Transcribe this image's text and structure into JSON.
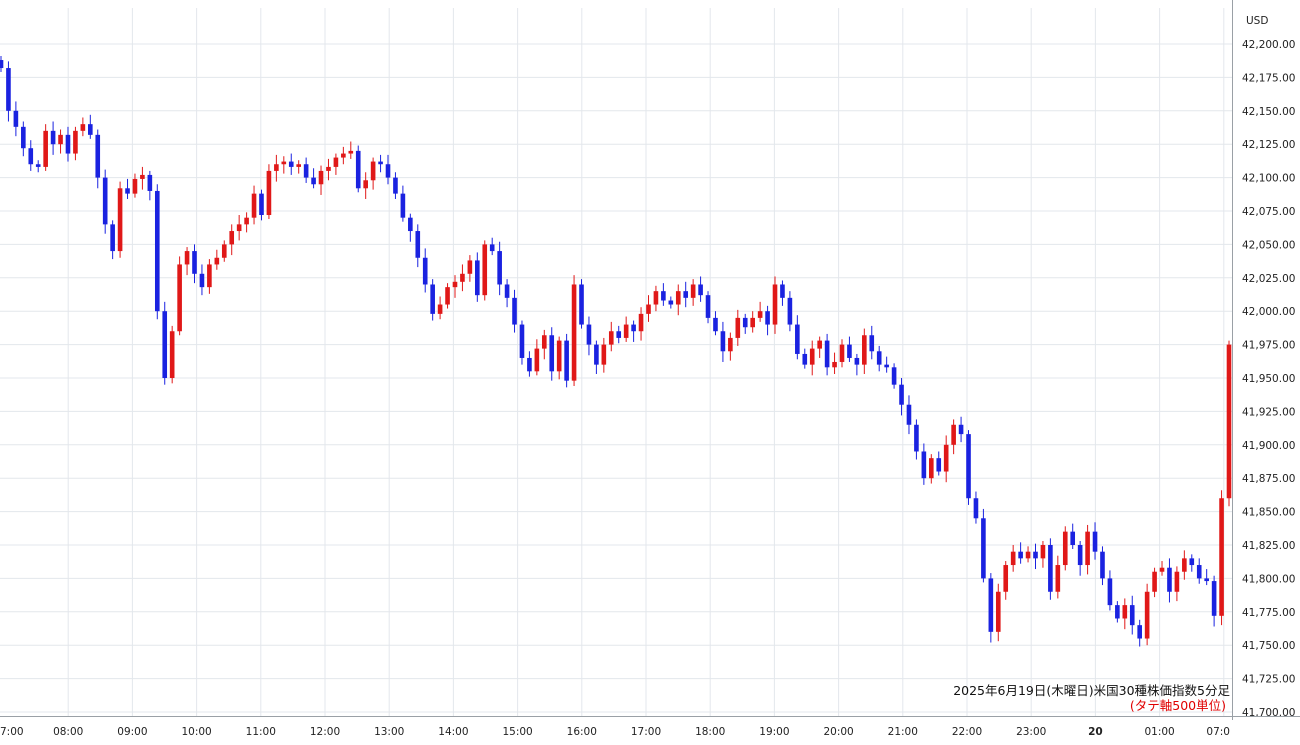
{
  "chart_data": {
    "type": "candlestick",
    "title": "2025年6月19日(木曜日)米国30種株価指数5分足",
    "subtitle": "(タテ軸500単位)",
    "currency": "USD",
    "ylim": [
      41700,
      42210
    ],
    "yticks": [
      "42,200.00",
      "42,175.00",
      "42,150.00",
      "42,125.00",
      "42,100.00",
      "42,075.00",
      "42,050.00",
      "42,025.00",
      "42,000.00",
      "41,975.00",
      "41,950.00",
      "41,925.00",
      "41,900.00",
      "41,875.00",
      "41,850.00",
      "41,825.00",
      "41,800.00",
      "41,775.00",
      "41,750.00",
      "41,725.00",
      "41,700.00"
    ],
    "xticks": [
      "7:00",
      "08:00",
      "09:00",
      "10:00",
      "11:00",
      "12:00",
      "13:00",
      "14:00",
      "15:00",
      "16:00",
      "17:00",
      "18:00",
      "19:00",
      "20:00",
      "21:00",
      "22:00",
      "23:00",
      "20",
      "01:00",
      "07:0"
    ],
    "grid": true,
    "colors": {
      "up": "#e01818",
      "down": "#1a22e0"
    },
    "series": [
      {
        "close_path": [
          42182,
          42150,
          42138,
          42122,
          42110,
          42108,
          42135,
          42125,
          42132,
          42118,
          42135,
          42140,
          42132,
          42100,
          42065,
          42045,
          42092,
          42088,
          42099,
          42102,
          42090,
          42000,
          41950,
          41985,
          42035,
          42045,
          42028,
          42018,
          42035,
          42040,
          42050,
          42060,
          42065,
          42070,
          42088,
          42072,
          42105,
          42110,
          42112,
          42108,
          42110,
          42100,
          42095,
          42105,
          42108,
          42115,
          42118,
          42120,
          42092,
          42098,
          42112,
          42110,
          42100,
          42088,
          42070,
          42060,
          42040,
          42020,
          41998,
          42005,
          42018,
          42022,
          42028,
          42038,
          42012,
          42050,
          42045,
          42020,
          42010,
          41990,
          41965,
          41955,
          41972,
          41982,
          41955,
          41978,
          41948,
          42020,
          41990,
          41975,
          41960,
          41975,
          41985,
          41980,
          41990,
          41985,
          41998,
          42005,
          42015,
          42008,
          42005,
          42015,
          42010,
          42020,
          42012,
          41995,
          41985,
          41970,
          41980,
          41995,
          41988,
          41995,
          42000,
          41990,
          42020,
          42010,
          41990,
          41968,
          41960,
          41972,
          41978,
          41958,
          41962,
          41975,
          41965,
          41960,
          41982,
          41970,
          41960,
          41958,
          41945,
          41930,
          41915,
          41895,
          41875,
          41890,
          41880,
          41900,
          41915,
          41908,
          41860,
          41845,
          41800,
          41760,
          41790,
          41810,
          41820,
          41815,
          41820,
          41815,
          41825,
          41790,
          41810,
          41835,
          41825,
          41810,
          41835,
          41820,
          41800,
          41780,
          41770,
          41780,
          41765,
          41755,
          41790,
          41805,
          41808,
          41790,
          41805,
          41815,
          41810,
          41800,
          41798,
          41772,
          41860,
          41975
        ]
      }
    ]
  }
}
